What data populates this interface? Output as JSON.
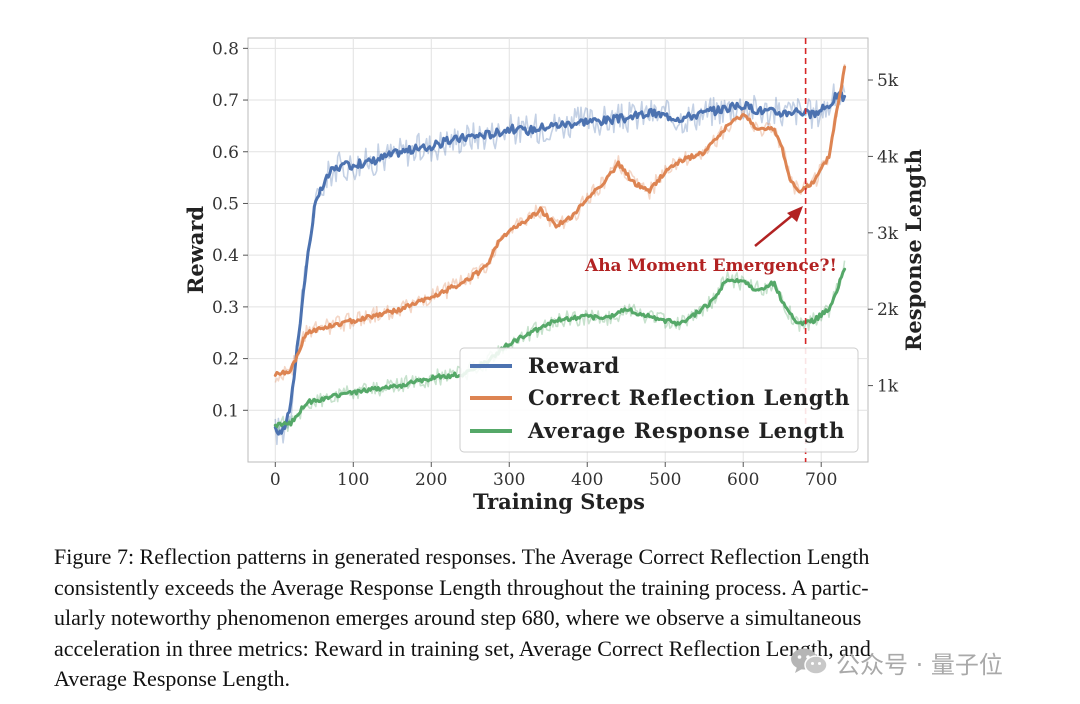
{
  "chart_data": {
    "type": "line",
    "x_title": "Training Steps",
    "y_left_title": "Reward",
    "y_right_title": "Response Length",
    "x_ticks": [
      "0",
      "100",
      "200",
      "300",
      "400",
      "500",
      "600",
      "700"
    ],
    "y_left_ticks": [
      "0.1",
      "0.2",
      "0.3",
      "0.4",
      "0.5",
      "0.6",
      "0.7",
      "0.8"
    ],
    "y_right_ticks": [
      "1k",
      "2k",
      "3k",
      "4k",
      "5k"
    ],
    "xlim": [
      -35,
      760
    ],
    "ylim_left": [
      0.0,
      0.82
    ],
    "ylim_right": [
      0,
      5550
    ],
    "annotation": {
      "text": "Aha Moment Emergence?!",
      "step": 680
    },
    "series": [
      {
        "name": "Reward",
        "axis": "left",
        "color": "#4c72b0",
        "points": [
          [
            0,
            0.06
          ],
          [
            10,
            0.06
          ],
          [
            20,
            0.11
          ],
          [
            30,
            0.25
          ],
          [
            40,
            0.38
          ],
          [
            50,
            0.49
          ],
          [
            60,
            0.53
          ],
          [
            70,
            0.56
          ],
          [
            80,
            0.57
          ],
          [
            100,
            0.575
          ],
          [
            120,
            0.58
          ],
          [
            140,
            0.59
          ],
          [
            160,
            0.6
          ],
          [
            180,
            0.605
          ],
          [
            200,
            0.61
          ],
          [
            220,
            0.62
          ],
          [
            250,
            0.63
          ],
          [
            280,
            0.635
          ],
          [
            300,
            0.645
          ],
          [
            320,
            0.64
          ],
          [
            350,
            0.65
          ],
          [
            380,
            0.655
          ],
          [
            400,
            0.66
          ],
          [
            420,
            0.66
          ],
          [
            450,
            0.665
          ],
          [
            480,
            0.675
          ],
          [
            500,
            0.67
          ],
          [
            520,
            0.665
          ],
          [
            550,
            0.675
          ],
          [
            580,
            0.685
          ],
          [
            600,
            0.69
          ],
          [
            620,
            0.68
          ],
          [
            650,
            0.675
          ],
          [
            670,
            0.68
          ],
          [
            690,
            0.67
          ],
          [
            710,
            0.69
          ],
          [
            720,
            0.71
          ],
          [
            730,
            0.705
          ]
        ]
      },
      {
        "name": "Correct Reflection Length",
        "axis": "right",
        "color": "#dd8452",
        "points": [
          [
            0,
            1150
          ],
          [
            20,
            1200
          ],
          [
            40,
            1700
          ],
          [
            80,
            1800
          ],
          [
            120,
            1900
          ],
          [
            160,
            2000
          ],
          [
            200,
            2150
          ],
          [
            240,
            2350
          ],
          [
            270,
            2550
          ],
          [
            290,
            2950
          ],
          [
            320,
            3150
          ],
          [
            340,
            3300
          ],
          [
            360,
            3100
          ],
          [
            380,
            3200
          ],
          [
            400,
            3450
          ],
          [
            420,
            3650
          ],
          [
            440,
            3900
          ],
          [
            460,
            3650
          ],
          [
            480,
            3550
          ],
          [
            500,
            3800
          ],
          [
            520,
            3950
          ],
          [
            550,
            4050
          ],
          [
            580,
            4400
          ],
          [
            600,
            4550
          ],
          [
            620,
            4350
          ],
          [
            640,
            4350
          ],
          [
            650,
            4100
          ],
          [
            660,
            3700
          ],
          [
            670,
            3550
          ],
          [
            690,
            3650
          ],
          [
            710,
            4000
          ],
          [
            720,
            4600
          ],
          [
            730,
            5150
          ]
        ]
      },
      {
        "name": "Average Response Length",
        "axis": "right",
        "color": "#55a868",
        "points": [
          [
            0,
            480
          ],
          [
            20,
            500
          ],
          [
            40,
            780
          ],
          [
            80,
            870
          ],
          [
            120,
            950
          ],
          [
            160,
            1000
          ],
          [
            200,
            1100
          ],
          [
            240,
            1150
          ],
          [
            270,
            1300
          ],
          [
            300,
            1550
          ],
          [
            320,
            1650
          ],
          [
            340,
            1750
          ],
          [
            360,
            1850
          ],
          [
            400,
            1900
          ],
          [
            430,
            1900
          ],
          [
            450,
            2000
          ],
          [
            480,
            1900
          ],
          [
            520,
            1800
          ],
          [
            540,
            1950
          ],
          [
            560,
            2100
          ],
          [
            580,
            2400
          ],
          [
            600,
            2350
          ],
          [
            620,
            2250
          ],
          [
            640,
            2350
          ],
          [
            650,
            2100
          ],
          [
            660,
            1950
          ],
          [
            670,
            1800
          ],
          [
            690,
            1850
          ],
          [
            710,
            2000
          ],
          [
            720,
            2250
          ],
          [
            730,
            2550
          ]
        ]
      }
    ]
  },
  "caption": {
    "lines": [
      "Figure 7: Reflection patterns in generated responses. The Average Correct Reflection Length",
      "consistently exceeds the Average Response Length throughout the training process. A partic-",
      "ularly noteworthy phenomenon emerges around step 680, where we observe a simultaneous",
      "acceleration in three metrics: Reward in training set, Average Correct Reflection Length, and",
      "Average Response Length."
    ]
  },
  "watermark": {
    "text": "公众号 · 量子位",
    "icon": "wechat-icon"
  }
}
